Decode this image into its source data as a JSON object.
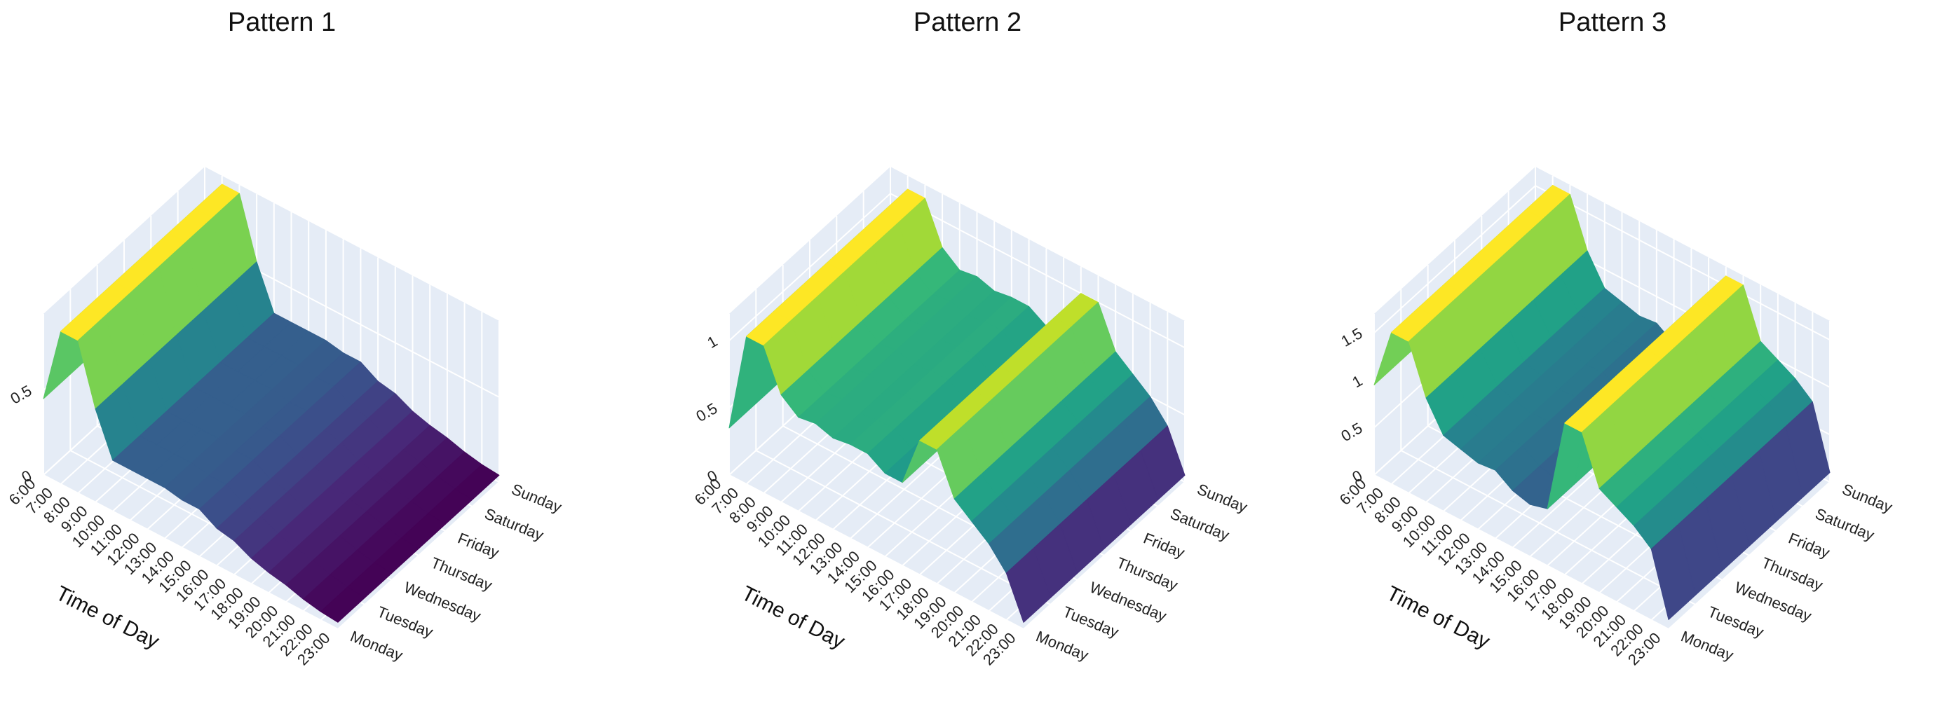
{
  "chart_data": [
    {
      "type": "surface",
      "title": "Pattern 1",
      "xlabel": "Time of Day",
      "colorscale": "Viridis",
      "x": [
        "6:00",
        "7:00",
        "8:00",
        "9:00",
        "10:00",
        "11:00",
        "12:00",
        "13:00",
        "14:00",
        "15:00",
        "16:00",
        "17:00",
        "18:00",
        "19:00",
        "20:00",
        "21:00",
        "22:00",
        "23:00"
      ],
      "y": [
        "Monday",
        "Tuesday",
        "Wednesday",
        "Thursday",
        "Friday",
        "Saturday",
        "Sunday"
      ],
      "z": [
        [
          0.45,
          0.9,
          0.9,
          0.55,
          0.3,
          0.3,
          0.3,
          0.3,
          0.28,
          0.28,
          0.22,
          0.2,
          0.15,
          0.12,
          0.1,
          0.07,
          0.05,
          0.04
        ],
        [
          0.45,
          0.9,
          0.9,
          0.55,
          0.3,
          0.3,
          0.3,
          0.3,
          0.28,
          0.28,
          0.22,
          0.2,
          0.15,
          0.12,
          0.1,
          0.07,
          0.05,
          0.04
        ],
        [
          0.45,
          0.9,
          0.9,
          0.55,
          0.3,
          0.3,
          0.3,
          0.3,
          0.28,
          0.28,
          0.22,
          0.2,
          0.15,
          0.12,
          0.1,
          0.07,
          0.05,
          0.04
        ],
        [
          0.45,
          0.9,
          0.9,
          0.55,
          0.3,
          0.3,
          0.3,
          0.3,
          0.28,
          0.28,
          0.22,
          0.2,
          0.15,
          0.12,
          0.1,
          0.07,
          0.05,
          0.04
        ],
        [
          0.45,
          0.9,
          0.9,
          0.55,
          0.3,
          0.3,
          0.3,
          0.3,
          0.28,
          0.28,
          0.22,
          0.2,
          0.15,
          0.12,
          0.1,
          0.07,
          0.05,
          0.04
        ],
        [
          0.45,
          0.9,
          0.9,
          0.55,
          0.3,
          0.3,
          0.3,
          0.3,
          0.28,
          0.28,
          0.22,
          0.2,
          0.15,
          0.12,
          0.1,
          0.07,
          0.05,
          0.04
        ],
        [
          0.45,
          0.9,
          0.9,
          0.55,
          0.3,
          0.3,
          0.3,
          0.3,
          0.28,
          0.28,
          0.22,
          0.2,
          0.15,
          0.12,
          0.1,
          0.07,
          0.05,
          0.04
        ]
      ],
      "zlim": [
        0,
        0.95
      ],
      "zticks": [
        0,
        0.5
      ]
    },
    {
      "type": "surface",
      "title": "Pattern 2",
      "xlabel": "Time of Day",
      "colorscale": "Viridis",
      "x": [
        "6:00",
        "7:00",
        "8:00",
        "9:00",
        "10:00",
        "11:00",
        "12:00",
        "13:00",
        "14:00",
        "15:00",
        "16:00",
        "17:00",
        "18:00",
        "19:00",
        "20:00",
        "21:00",
        "22:00",
        "23:00"
      ],
      "y": [
        "Monday",
        "Tuesday",
        "Wednesday",
        "Thursday",
        "Friday",
        "Saturday",
        "Sunday"
      ],
      "z": [
        [
          0.35,
          1.1,
          1.1,
          0.8,
          0.7,
          0.72,
          0.68,
          0.7,
          0.7,
          0.62,
          0.62,
          1.0,
          1.0,
          0.7,
          0.6,
          0.5,
          0.35,
          0.05
        ],
        [
          0.35,
          1.1,
          1.1,
          0.8,
          0.7,
          0.72,
          0.68,
          0.7,
          0.7,
          0.62,
          0.62,
          1.0,
          1.0,
          0.7,
          0.6,
          0.5,
          0.35,
          0.05
        ],
        [
          0.35,
          1.1,
          1.1,
          0.8,
          0.7,
          0.72,
          0.68,
          0.7,
          0.7,
          0.62,
          0.62,
          1.0,
          1.0,
          0.7,
          0.6,
          0.5,
          0.35,
          0.05
        ],
        [
          0.35,
          1.1,
          1.1,
          0.8,
          0.7,
          0.72,
          0.68,
          0.7,
          0.7,
          0.62,
          0.62,
          1.0,
          1.0,
          0.7,
          0.6,
          0.5,
          0.35,
          0.05
        ],
        [
          0.35,
          1.1,
          1.1,
          0.8,
          0.7,
          0.72,
          0.68,
          0.7,
          0.7,
          0.62,
          0.62,
          1.0,
          1.0,
          0.7,
          0.6,
          0.5,
          0.35,
          0.05
        ],
        [
          0.35,
          1.1,
          1.1,
          0.8,
          0.7,
          0.72,
          0.68,
          0.7,
          0.7,
          0.62,
          0.62,
          1.0,
          1.0,
          0.7,
          0.6,
          0.5,
          0.35,
          0.05
        ],
        [
          0.35,
          1.1,
          1.1,
          0.8,
          0.7,
          0.72,
          0.68,
          0.7,
          0.7,
          0.62,
          0.62,
          1.0,
          1.0,
          0.7,
          0.6,
          0.5,
          0.35,
          0.05
        ]
      ],
      "zlim": [
        0,
        1.2
      ],
      "zticks": [
        0,
        0.5,
        1
      ]
    },
    {
      "type": "surface",
      "title": "Pattern 3",
      "xlabel": "Time of Day",
      "colorscale": "Viridis",
      "x": [
        "6:00",
        "7:00",
        "8:00",
        "9:00",
        "10:00",
        "11:00",
        "12:00",
        "13:00",
        "14:00",
        "15:00",
        "16:00",
        "17:00",
        "18:00",
        "19:00",
        "20:00",
        "21:00",
        "22:00",
        "23:00"
      ],
      "y": [
        "Monday",
        "Tuesday",
        "Wednesday",
        "Thursday",
        "Friday",
        "Saturday",
        "Sunday"
      ],
      "z": [
        [
          0.95,
          1.6,
          1.6,
          1.1,
          0.8,
          0.75,
          0.7,
          0.72,
          0.6,
          0.55,
          0.6,
          1.6,
          1.6,
          1.1,
          1.0,
          0.9,
          0.75,
          0.1
        ],
        [
          0.95,
          1.6,
          1.6,
          1.1,
          0.8,
          0.75,
          0.7,
          0.72,
          0.6,
          0.55,
          0.6,
          1.6,
          1.6,
          1.1,
          1.0,
          0.9,
          0.75,
          0.1
        ],
        [
          0.95,
          1.6,
          1.6,
          1.1,
          0.8,
          0.75,
          0.7,
          0.72,
          0.6,
          0.55,
          0.6,
          1.6,
          1.6,
          1.1,
          1.0,
          0.9,
          0.75,
          0.1
        ],
        [
          0.95,
          1.6,
          1.6,
          1.1,
          0.8,
          0.75,
          0.7,
          0.72,
          0.6,
          0.55,
          0.6,
          1.6,
          1.6,
          1.1,
          1.0,
          0.9,
          0.75,
          0.1
        ],
        [
          0.95,
          1.6,
          1.6,
          1.1,
          0.8,
          0.75,
          0.7,
          0.72,
          0.6,
          0.55,
          0.6,
          1.6,
          1.6,
          1.1,
          1.0,
          0.9,
          0.75,
          0.1
        ],
        [
          0.95,
          1.6,
          1.6,
          1.1,
          0.8,
          0.75,
          0.7,
          0.72,
          0.6,
          0.55,
          0.6,
          1.6,
          1.6,
          1.1,
          1.0,
          0.9,
          0.75,
          0.1
        ],
        [
          0.95,
          1.6,
          1.6,
          1.1,
          0.8,
          0.75,
          0.7,
          0.72,
          0.6,
          0.55,
          0.6,
          1.6,
          1.6,
          1.1,
          1.0,
          0.9,
          0.75,
          0.1
        ]
      ],
      "zlim": [
        0,
        1.7
      ],
      "zticks": [
        0,
        0.5,
        1,
        1.5
      ]
    }
  ]
}
